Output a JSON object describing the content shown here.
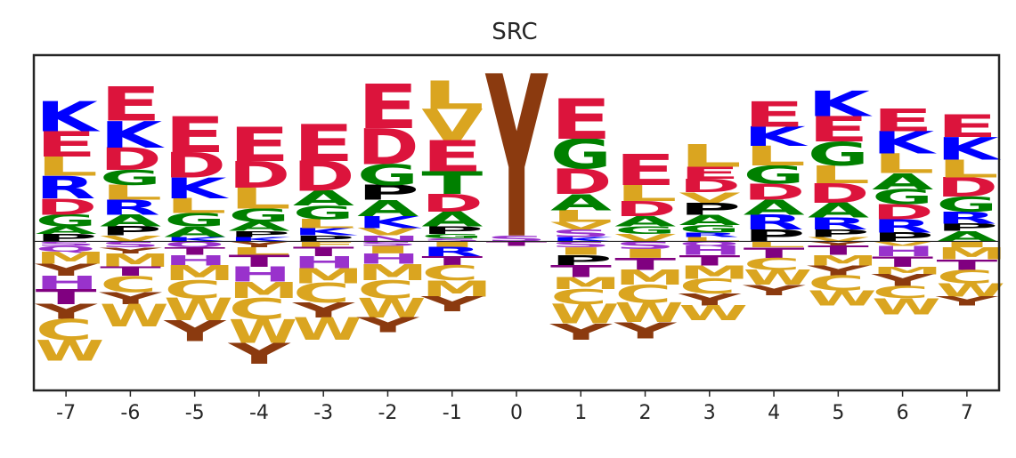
{
  "chart_data": {
    "type": "sequence-logo",
    "title": "SRC",
    "positions": [
      -7,
      -6,
      -5,
      -4,
      -3,
      -2,
      -1,
      0,
      1,
      2,
      3,
      4,
      5,
      6,
      7
    ],
    "ylim": [
      -2.0,
      2.5
    ],
    "grid": false,
    "colors": {
      "E": "#DC143C",
      "D": "#DC143C",
      "K": "#0000FF",
      "R": "#0000FF",
      "H": "#0000FF",
      "G": "#008000",
      "S": "#008000",
      "T": "#008000",
      "Y": "#8B3A0F",
      "A": "#008000",
      "N": "#9932CC",
      "Q": "#9932CC",
      "P": "#000000",
      "L": "#DAA520",
      "V": "#DAA520",
      "I": "#DAA520",
      "M": "#DAA520",
      "F": "#DAA520",
      "W": "#DAA520",
      "C": "#DAA520",
      "S2": "#9932CC",
      "T2": "#800080",
      "H2": "#9932CC"
    },
    "stacks": [
      {
        "pos": -7,
        "up": [
          [
            "P",
            0.1
          ],
          [
            "A",
            0.1
          ],
          [
            "G",
            0.16
          ],
          [
            "D",
            0.22
          ],
          [
            "R",
            0.3
          ],
          [
            "L",
            0.26
          ],
          [
            "E",
            0.34
          ],
          [
            "K",
            0.4
          ]
        ],
        "down": [
          [
            "S",
            0.06
          ],
          [
            "Q",
            0.08
          ],
          [
            "M",
            0.16
          ],
          [
            "Y",
            0.16
          ],
          [
            "H",
            0.18
          ],
          [
            "T",
            0.2
          ],
          [
            "Y",
            0.2
          ],
          [
            "C",
            0.28
          ],
          [
            "W",
            0.28
          ]
        ]
      },
      {
        "pos": -6,
        "up": [
          [
            "V",
            0.08
          ],
          [
            "P",
            0.12
          ],
          [
            "A",
            0.16
          ],
          [
            "R",
            0.2
          ],
          [
            "L",
            0.2
          ],
          [
            "G",
            0.2
          ],
          [
            "D",
            0.3
          ],
          [
            "K",
            0.36
          ],
          [
            "E",
            0.46
          ]
        ],
        "down": [
          [
            "S",
            0.08
          ],
          [
            "Y",
            0.08
          ],
          [
            "M",
            0.18
          ],
          [
            "T",
            0.12
          ],
          [
            "C",
            0.22
          ],
          [
            "Y",
            0.16
          ],
          [
            "W",
            0.3
          ]
        ]
      },
      {
        "pos": -5,
        "up": [
          [
            "K",
            0.06
          ],
          [
            "A",
            0.14
          ],
          [
            "G",
            0.18
          ],
          [
            "L",
            0.2
          ],
          [
            "K",
            0.28
          ],
          [
            "D",
            0.34
          ],
          [
            "E",
            0.48
          ]
        ],
        "down": [
          [
            "Q",
            0.08
          ],
          [
            "T",
            0.1
          ],
          [
            "H",
            0.14
          ],
          [
            "M",
            0.2
          ],
          [
            "C",
            0.24
          ],
          [
            "W",
            0.3
          ],
          [
            "Y",
            0.28
          ]
        ]
      },
      {
        "pos": -4,
        "up": [
          [
            "K",
            0.06
          ],
          [
            "P",
            0.08
          ],
          [
            "A",
            0.12
          ],
          [
            "G",
            0.18
          ],
          [
            "L",
            0.28
          ],
          [
            "D",
            0.36
          ],
          [
            "E",
            0.46
          ]
        ],
        "down": [
          [
            "Y",
            0.08
          ],
          [
            "L",
            0.1
          ],
          [
            "T",
            0.16
          ],
          [
            "H",
            0.2
          ],
          [
            "M",
            0.22
          ],
          [
            "C",
            0.28
          ],
          [
            "W",
            0.32
          ],
          [
            "Y",
            0.28
          ]
        ]
      },
      {
        "pos": -3,
        "up": [
          [
            "P",
            0.08
          ],
          [
            "K",
            0.1
          ],
          [
            "L",
            0.12
          ],
          [
            "G",
            0.18
          ],
          [
            "A",
            0.2
          ],
          [
            "D",
            0.4
          ],
          [
            "E",
            0.5
          ]
        ],
        "down": [
          [
            "F",
            0.08
          ],
          [
            "T",
            0.12
          ],
          [
            "H",
            0.16
          ],
          [
            "M",
            0.2
          ],
          [
            "C",
            0.26
          ],
          [
            "Y",
            0.2
          ],
          [
            "W",
            0.3
          ]
        ]
      },
      {
        "pos": -2,
        "up": [
          [
            "N",
            0.08
          ],
          [
            "V",
            0.1
          ],
          [
            "K",
            0.16
          ],
          [
            "A",
            0.22
          ],
          [
            "P",
            0.2
          ],
          [
            "G",
            0.28
          ],
          [
            "D",
            0.48
          ],
          [
            "E",
            0.6
          ]
        ],
        "down": [
          [
            "S",
            0.06
          ],
          [
            "I",
            0.1
          ],
          [
            "H",
            0.14
          ],
          [
            "M",
            0.22
          ],
          [
            "C",
            0.24
          ],
          [
            "W",
            0.26
          ],
          [
            "Y",
            0.2
          ]
        ]
      },
      {
        "pos": -1,
        "up": [
          [
            "S",
            0.04
          ],
          [
            "G",
            0.06
          ],
          [
            "P",
            0.1
          ],
          [
            "A",
            0.2
          ],
          [
            "D",
            0.24
          ],
          [
            "T",
            0.3
          ],
          [
            "E",
            0.42
          ],
          [
            "V",
            0.42
          ],
          [
            "L",
            0.38
          ]
        ],
        "down": [
          [
            "I",
            0.08
          ],
          [
            "R",
            0.12
          ],
          [
            "T",
            0.12
          ],
          [
            "C",
            0.2
          ],
          [
            "M",
            0.22
          ],
          [
            "Y",
            0.2
          ]
        ]
      },
      {
        "pos": 0,
        "up": [
          [
            "S",
            0.08
          ],
          [
            "Y",
            2.18
          ]
        ],
        "down": [
          [
            "T",
            0.06
          ]
        ]
      },
      {
        "pos": 1,
        "up": [
          [
            "K",
            0.06
          ],
          [
            "S",
            0.1
          ],
          [
            "V",
            0.1
          ],
          [
            "L",
            0.16
          ],
          [
            "A",
            0.22
          ],
          [
            "D",
            0.34
          ],
          [
            "G",
            0.4
          ],
          [
            "E",
            0.54
          ]
        ],
        "down": [
          [
            "S",
            0.08
          ],
          [
            "I",
            0.1
          ],
          [
            "P",
            0.14
          ],
          [
            "T",
            0.16
          ],
          [
            "M",
            0.16
          ],
          [
            "C",
            0.2
          ],
          [
            "W",
            0.26
          ],
          [
            "Y",
            0.22
          ]
        ]
      },
      {
        "pos": 2,
        "up": [
          [
            "V",
            0.1
          ],
          [
            "G",
            0.1
          ],
          [
            "A",
            0.14
          ],
          [
            "D",
            0.2
          ],
          [
            "L",
            0.22
          ],
          [
            "E",
            0.42
          ]
        ],
        "down": [
          [
            "S",
            0.1
          ],
          [
            "I",
            0.12
          ],
          [
            "T",
            0.16
          ],
          [
            "M",
            0.2
          ],
          [
            "C",
            0.24
          ],
          [
            "W",
            0.26
          ],
          [
            "Y",
            0.22
          ]
        ]
      },
      {
        "pos": 3,
        "up": [
          [
            "L",
            0.06
          ],
          [
            "R",
            0.06
          ],
          [
            "G",
            0.1
          ],
          [
            "A",
            0.14
          ],
          [
            "P",
            0.16
          ],
          [
            "V",
            0.14
          ],
          [
            "D",
            0.18
          ],
          [
            "E",
            0.16
          ],
          [
            "L",
            0.3
          ]
        ],
        "down": [
          [
            "Q",
            0.06
          ],
          [
            "H",
            0.12
          ],
          [
            "T",
            0.14
          ],
          [
            "M",
            0.18
          ],
          [
            "C",
            0.2
          ],
          [
            "Y",
            0.16
          ],
          [
            "W",
            0.2
          ]
        ]
      },
      {
        "pos": 4,
        "up": [
          [
            "P",
            0.16
          ],
          [
            "R",
            0.2
          ],
          [
            "A",
            0.2
          ],
          [
            "D",
            0.22
          ],
          [
            "G",
            0.24
          ],
          [
            "L",
            0.26
          ],
          [
            "K",
            0.26
          ],
          [
            "E",
            0.34
          ]
        ],
        "down": [
          [
            "L",
            0.08
          ],
          [
            "T",
            0.14
          ],
          [
            "C",
            0.16
          ],
          [
            "W",
            0.2
          ],
          [
            "Y",
            0.14
          ]
        ]
      },
      {
        "pos": 5,
        "up": [
          [
            "V",
            0.06
          ],
          [
            "P",
            0.1
          ],
          [
            "R",
            0.16
          ],
          [
            "A",
            0.2
          ],
          [
            "D",
            0.26
          ],
          [
            "L",
            0.24
          ],
          [
            "G",
            0.32
          ],
          [
            "E",
            0.34
          ],
          [
            "K",
            0.34
          ]
        ],
        "down": [
          [
            "Y",
            0.06
          ],
          [
            "T",
            0.12
          ],
          [
            "M",
            0.14
          ],
          [
            "Y",
            0.14
          ],
          [
            "C",
            0.2
          ],
          [
            "W",
            0.2
          ]
        ]
      },
      {
        "pos": 6,
        "up": [
          [
            "P",
            0.12
          ],
          [
            "R",
            0.18
          ],
          [
            "D",
            0.2
          ],
          [
            "G",
            0.2
          ],
          [
            "A",
            0.22
          ],
          [
            "L",
            0.26
          ],
          [
            "K",
            0.3
          ],
          [
            "E",
            0.3
          ]
        ],
        "down": [
          [
            "V",
            0.06
          ],
          [
            "H",
            0.14
          ],
          [
            "T",
            0.14
          ],
          [
            "M",
            0.1
          ],
          [
            "Y",
            0.16
          ],
          [
            "C",
            0.16
          ],
          [
            "W",
            0.22
          ]
        ]
      },
      {
        "pos": 7,
        "up": [
          [
            "A",
            0.14
          ],
          [
            "P",
            0.1
          ],
          [
            "R",
            0.16
          ],
          [
            "G",
            0.2
          ],
          [
            "D",
            0.26
          ],
          [
            "L",
            0.24
          ],
          [
            "K",
            0.3
          ],
          [
            "E",
            0.3
          ]
        ],
        "down": [
          [
            "I",
            0.08
          ],
          [
            "M",
            0.16
          ],
          [
            "T",
            0.14
          ],
          [
            "C",
            0.18
          ],
          [
            "W",
            0.18
          ],
          [
            "Y",
            0.12
          ]
        ]
      }
    ]
  }
}
